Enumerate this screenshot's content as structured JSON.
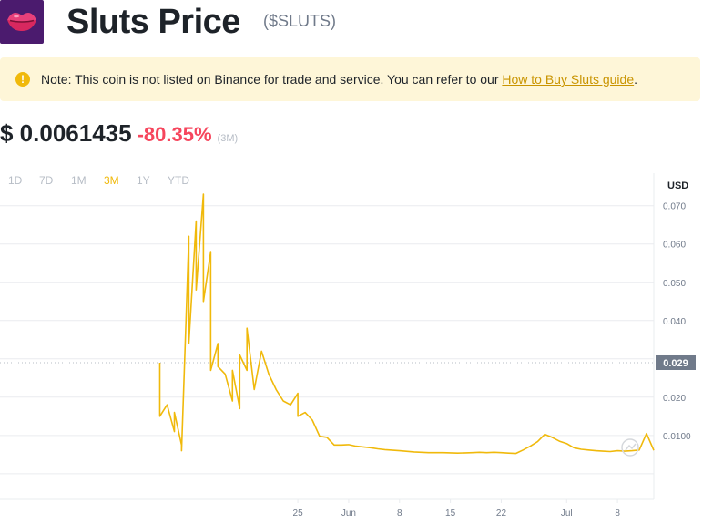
{
  "header": {
    "title": "Sluts Price",
    "symbol": "($SLUTS)",
    "logo_icon": "lips-icon"
  },
  "notice": {
    "icon": "exclamation-icon",
    "text": "Note: This coin is not listed on Binance for trade and service. You can refer to our ",
    "link_text": "How to Buy Sluts guide",
    "suffix": "."
  },
  "price": {
    "value": "$ 0.0061435",
    "change": "-80.35%",
    "period": "(3M)"
  },
  "ranges": [
    "1D",
    "7D",
    "1M",
    "3M",
    "1Y",
    "YTD"
  ],
  "active_range": "3M",
  "colors": {
    "line": "#f0b90b",
    "negative": "#f6465d",
    "accent": "#f0b90b",
    "current_label_bg": "#707a8a"
  },
  "chart_data": {
    "type": "line",
    "currency_label": "USD",
    "current_value_label": "0.029",
    "current_value": 0.029,
    "ylim": [
      -0.0067,
      0.0785
    ],
    "yticks": [
      {
        "value": 0.01,
        "label": "0.0100"
      },
      {
        "value": 0.02,
        "label": "0.020"
      },
      {
        "value": 0.03,
        "label": "0.030"
      },
      {
        "value": 0.04,
        "label": "0.040"
      },
      {
        "value": 0.05,
        "label": "0.050"
      },
      {
        "value": 0.06,
        "label": "0.060"
      },
      {
        "value": 0.07,
        "label": "0.070"
      }
    ],
    "x_range": [
      "2023-04-14",
      "2023-07-13"
    ],
    "xticks": [
      {
        "date": "2023-05-25",
        "label": "25"
      },
      {
        "date": "2023-06-01",
        "label": "Jun"
      },
      {
        "date": "2023-06-08",
        "label": "8"
      },
      {
        "date": "2023-06-15",
        "label": "15"
      },
      {
        "date": "2023-06-22",
        "label": "22"
      },
      {
        "date": "2023-07-01",
        "label": "Jul"
      },
      {
        "date": "2023-07-08",
        "label": "8"
      }
    ],
    "series": [
      {
        "x": [
          "2023-05-06",
          "2023-05-06",
          "2023-05-07",
          "2023-05-08",
          "2023-05-08",
          "2023-05-09",
          "2023-05-09",
          "2023-05-10",
          "2023-05-10",
          "2023-05-11",
          "2023-05-11",
          "2023-05-12",
          "2023-05-12",
          "2023-05-13",
          "2023-05-13",
          "2023-05-14",
          "2023-05-14",
          "2023-05-15",
          "2023-05-16",
          "2023-05-16",
          "2023-05-17",
          "2023-05-17",
          "2023-05-18",
          "2023-05-18",
          "2023-05-19",
          "2023-05-20",
          "2023-05-21",
          "2023-05-22",
          "2023-05-23",
          "2023-05-24",
          "2023-05-25",
          "2023-05-25",
          "2023-05-26",
          "2023-05-27",
          "2023-05-28",
          "2023-05-29",
          "2023-05-30",
          "2023-05-31",
          "2023-06-01",
          "2023-06-02",
          "2023-06-03",
          "2023-06-04",
          "2023-06-05",
          "2023-06-06",
          "2023-06-08",
          "2023-06-10",
          "2023-06-12",
          "2023-06-14",
          "2023-06-16",
          "2023-06-18",
          "2023-06-19",
          "2023-06-20",
          "2023-06-21",
          "2023-06-22",
          "2023-06-23",
          "2023-06-24",
          "2023-06-25",
          "2023-06-26",
          "2023-06-27",
          "2023-06-28",
          "2023-06-29",
          "2023-06-30",
          "2023-07-01",
          "2023-07-02",
          "2023-07-03",
          "2023-07-04",
          "2023-07-05",
          "2023-07-06",
          "2023-07-07",
          "2023-07-08",
          "2023-07-09",
          "2023-07-10",
          "2023-07-11",
          "2023-07-12",
          "2023-07-13"
        ],
        "y": [
          0.029,
          0.015,
          0.018,
          0.011,
          0.016,
          0.0075,
          0.006,
          0.062,
          0.034,
          0.066,
          0.048,
          0.073,
          0.045,
          0.058,
          0.027,
          0.034,
          0.028,
          0.026,
          0.019,
          0.027,
          0.017,
          0.031,
          0.027,
          0.038,
          0.022,
          0.032,
          0.026,
          0.022,
          0.019,
          0.018,
          0.021,
          0.015,
          0.016,
          0.014,
          0.0098,
          0.0095,
          0.0075,
          0.0075,
          0.0076,
          0.0072,
          0.007,
          0.0068,
          0.0065,
          0.0063,
          0.006,
          0.0057,
          0.0055,
          0.0055,
          0.0054,
          0.0055,
          0.0056,
          0.0055,
          0.0056,
          0.0055,
          0.0054,
          0.0053,
          0.0062,
          0.0072,
          0.0084,
          0.0103,
          0.0095,
          0.0085,
          0.0079,
          0.0068,
          0.0064,
          0.0062,
          0.006,
          0.0059,
          0.0058,
          0.006,
          0.0059,
          0.006,
          0.0062,
          0.0105,
          0.0061
        ]
      }
    ]
  }
}
